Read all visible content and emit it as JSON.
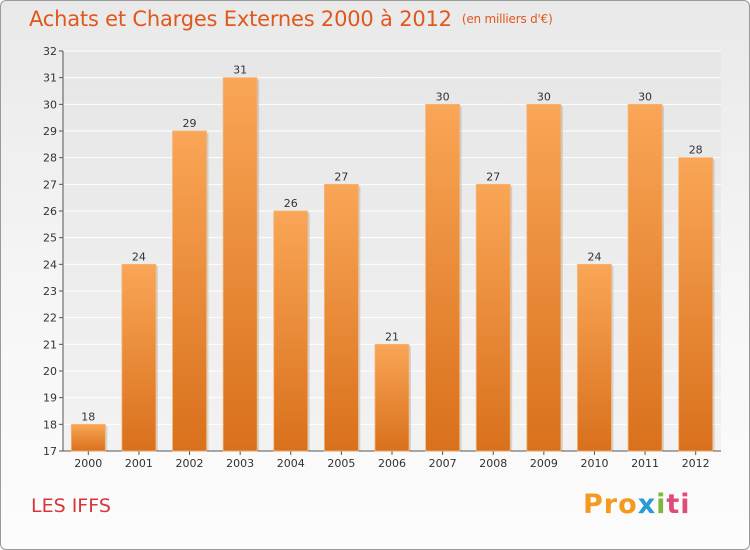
{
  "header": {
    "title": "Achats et Charges Externes 2000 à 2012",
    "subtitle": "(en milliers d'€)"
  },
  "footer": {
    "location": "LES IFFS",
    "logo_text": "Proxiti"
  },
  "colors": {
    "bar_light": "#f9a656",
    "bar_dark": "#d9701c",
    "title": "#e0581c",
    "location": "#d9343a",
    "grid": "#ffffff",
    "logo": [
      "#f39a1f",
      "#f39a1f",
      "#f39a1f",
      "#2a9ad6",
      "#7cb93c",
      "#e04c7a",
      "#e04c7a"
    ]
  },
  "chart_data": {
    "type": "bar",
    "categories": [
      "2000",
      "2001",
      "2002",
      "2003",
      "2004",
      "2005",
      "2006",
      "2007",
      "2008",
      "2009",
      "2010",
      "2011",
      "2012"
    ],
    "values": [
      18,
      24,
      29,
      31,
      26,
      27,
      21,
      30,
      27,
      30,
      24,
      30,
      28
    ],
    "ylim": [
      17,
      32
    ],
    "yticks": [
      "17",
      "18",
      "19",
      "20",
      "21",
      "22",
      "23",
      "24",
      "25",
      "26",
      "27",
      "28",
      "29",
      "30",
      "31",
      "32"
    ],
    "grid": true,
    "title": "Achats et Charges Externes 2000 à 2012",
    "xlabel": "",
    "ylabel": ""
  }
}
